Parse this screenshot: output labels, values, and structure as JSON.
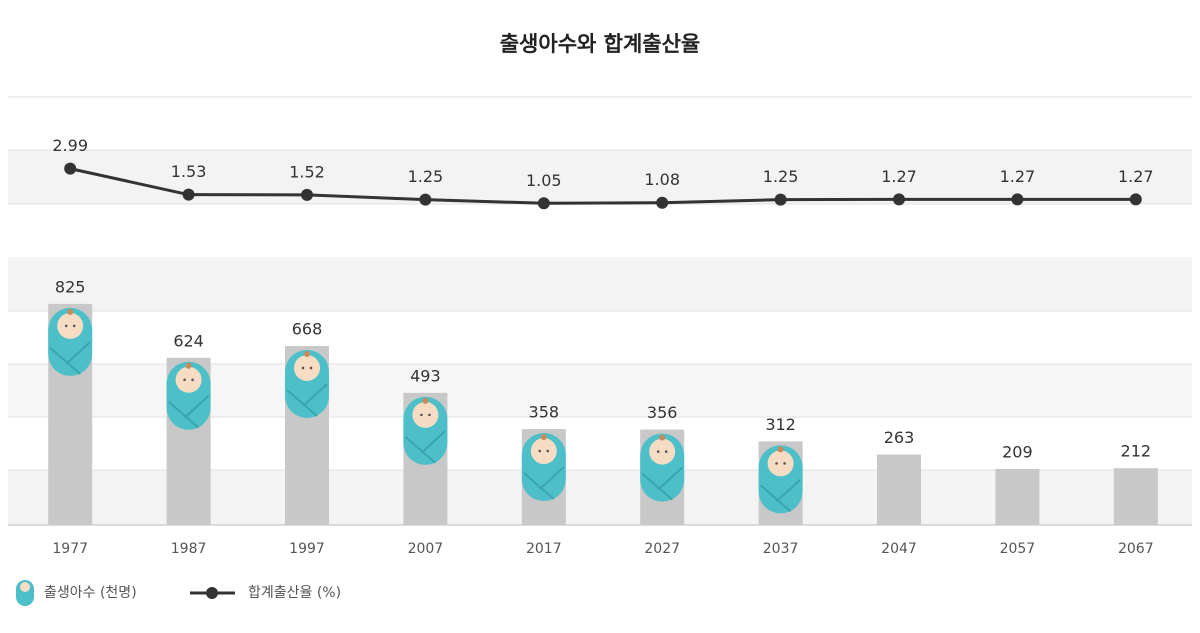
{
  "chart_data": {
    "type": "combo",
    "title": "출생아수와 합계출산율",
    "categories": [
      "1977",
      "1987",
      "1997",
      "2007",
      "2017",
      "2027",
      "2037",
      "2047",
      "2057",
      "2067"
    ],
    "series": [
      {
        "name": "출생아수 (천명)",
        "type": "bar",
        "color": "#c9c8c8",
        "values": [
          825,
          624,
          668,
          493,
          358,
          356,
          312,
          263,
          209,
          212
        ]
      },
      {
        "name": "합계출산율 (%)",
        "type": "line",
        "color": "#333333",
        "axis": "y2",
        "values": [
          2.99,
          1.53,
          1.52,
          1.25,
          1.05,
          1.08,
          1.25,
          1.27,
          1.27,
          1.27
        ]
      }
    ],
    "ylim": [
      0,
      1000
    ],
    "y2lim": [
      0,
      7
    ]
  }
}
